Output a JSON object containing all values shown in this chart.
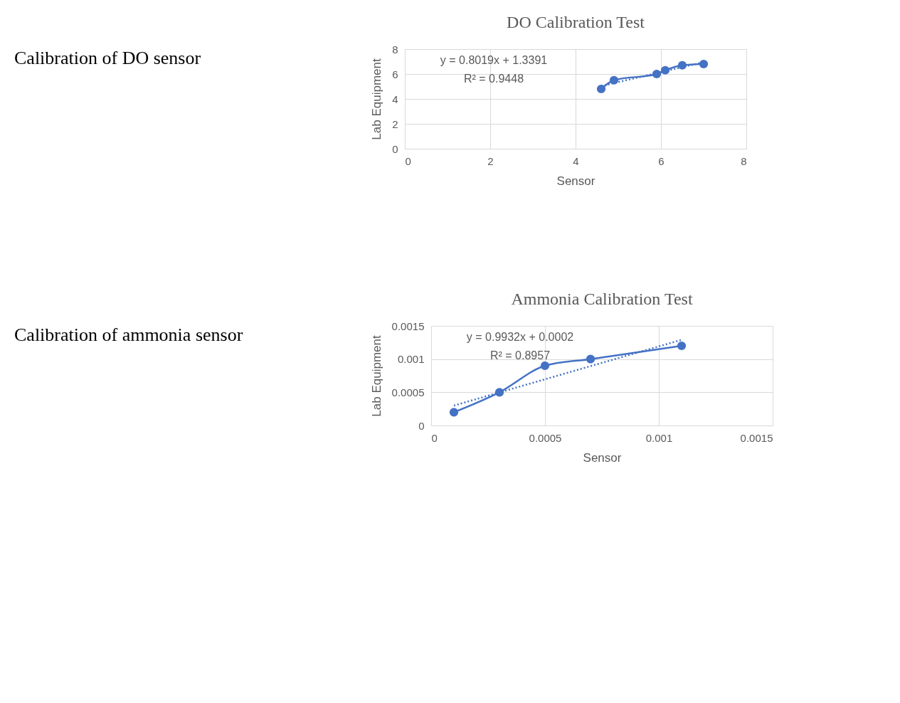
{
  "chart_data": [
    {
      "type": "line",
      "title": "DO Calibration Test",
      "xlabel": "Sensor",
      "ylabel": "Lab Equipment",
      "annotations": [
        "Calibration of DO sensor",
        "y = 0.8019x + 1.3391",
        "R² = 0.9448"
      ],
      "x": [
        4.6,
        4.9,
        5.9,
        6.1,
        6.5,
        7.0
      ],
      "series": [
        {
          "color": "#4472c4",
          "marker": "circle",
          "line_style": "solid",
          "values": [
            4.8,
            5.5,
            6.0,
            6.3,
            6.7,
            6.8
          ]
        },
        {
          "type": "line",
          "color": "#4472c4",
          "marker": "none",
          "line_style": "dotted",
          "x": [
            4.6,
            7.0
          ],
          "values": [
            5.03,
            6.95
          ]
        }
      ],
      "xlim": [
        0,
        8
      ],
      "xticks": [
        0,
        2,
        4,
        6,
        8
      ],
      "ylim": [
        0,
        8
      ],
      "yticks": [
        0,
        2,
        4,
        6,
        8
      ],
      "grid": true
    },
    {
      "type": "line",
      "title": "Ammonia Calibration Test",
      "xlabel": "Sensor",
      "ylabel": "Lab Equipment",
      "annotations": [
        "Calibration of ammonia sensor",
        "y = 0.9932x + 0.0002",
        "R² = 0.8957"
      ],
      "x": [
        0.0001,
        0.0003,
        0.0005,
        0.0007,
        0.0011
      ],
      "series": [
        {
          "color": "#4472c4",
          "marker": "circle",
          "line_style": "solid",
          "values": [
            0.0002,
            0.0005,
            0.0009,
            0.001,
            0.0012
          ]
        },
        {
          "type": "line",
          "color": "#4472c4",
          "marker": "none",
          "line_style": "dotted",
          "x": [
            0.0001,
            0.0011
          ],
          "values": [
            0.0003,
            0.00129
          ]
        }
      ],
      "xlim": [
        0,
        0.0015
      ],
      "xticks": [
        0,
        0.0005,
        0.001,
        0.0015
      ],
      "ylim": [
        0,
        0.0015
      ],
      "yticks": [
        0,
        0.0005,
        0.001,
        0.0015
      ],
      "grid": true
    }
  ]
}
